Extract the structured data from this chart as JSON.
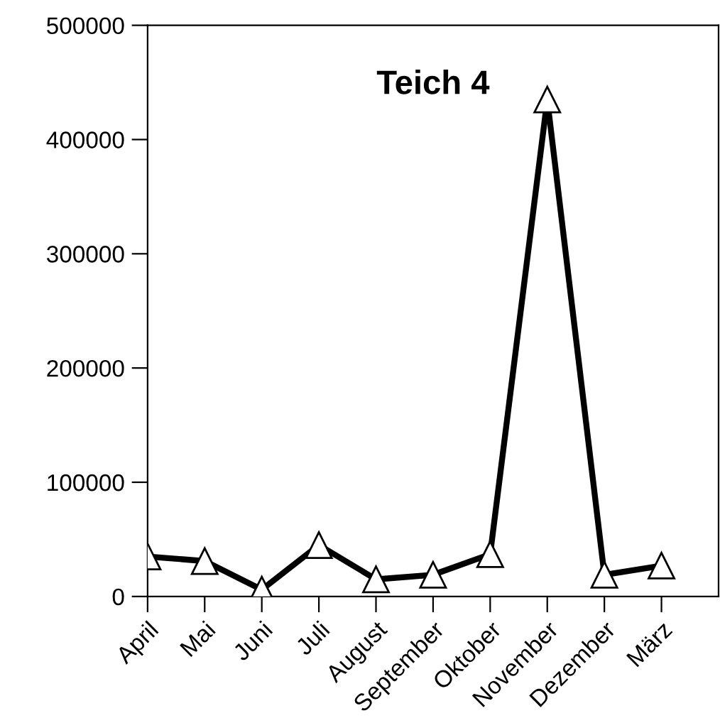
{
  "chart_data": {
    "type": "line",
    "title": "Teich 4",
    "categories": [
      "April",
      "Mai",
      "Juni",
      "Juli",
      "August",
      "September",
      "Oktober",
      "November",
      "Dezember",
      "März"
    ],
    "series": [
      {
        "color": "#000000",
        "values": [
          35000,
          31000,
          6000,
          45000,
          15000,
          19000,
          37000,
          435000,
          19000,
          27000
        ]
      }
    ],
    "ylim": [
      0,
      500000
    ],
    "yticks": [
      0,
      100000,
      200000,
      300000,
      400000,
      500000
    ],
    "grid": false,
    "legend": false,
    "marker": "triangle",
    "line_style": "solid"
  }
}
